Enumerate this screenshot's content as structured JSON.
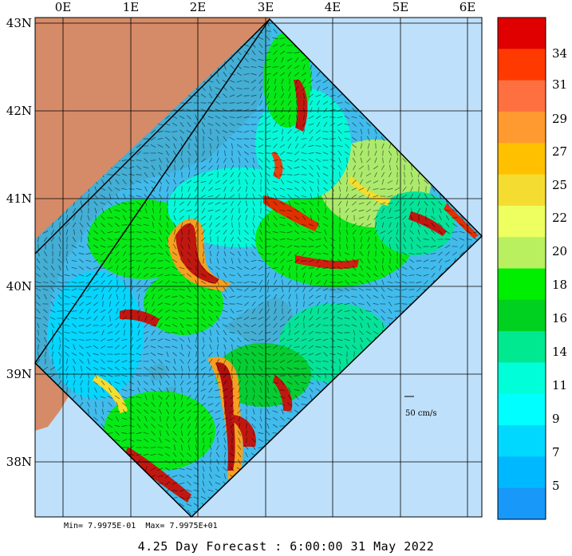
{
  "map": {
    "lon_labels": [
      "0E",
      "1E",
      "2E",
      "3E",
      "4E",
      "5E",
      "6E"
    ],
    "lat_labels": [
      "43N",
      "42N",
      "41N",
      "40N",
      "39N",
      "38N"
    ],
    "scale_label": "50 cm/s",
    "colors": {
      "sea": "#bfe0fa",
      "land": "#d58b68",
      "grid": "#000000"
    }
  },
  "colorbar": {
    "labels": [
      "34",
      "31",
      "29",
      "27",
      "25",
      "22",
      "20",
      "18",
      "16",
      "14",
      "11",
      "9",
      "7",
      "5"
    ],
    "colors": [
      "#e00000",
      "#ff3a00",
      "#ff7040",
      "#ff9a30",
      "#ffc000",
      "#f5dc30",
      "#eeff60",
      "#b8f060",
      "#00ee00",
      "#00d020",
      "#00e890",
      "#00ffd8",
      "#00ffff",
      "#00d8ff",
      "#00b8ff",
      "#1898f8"
    ]
  },
  "stats": {
    "min_text": "Min= 7.9975E-01",
    "max_text": "Max= 7.9975E+01"
  },
  "footer": {
    "title": "4.25 Day Forecast :  6:00:00  31 May 2022"
  }
}
